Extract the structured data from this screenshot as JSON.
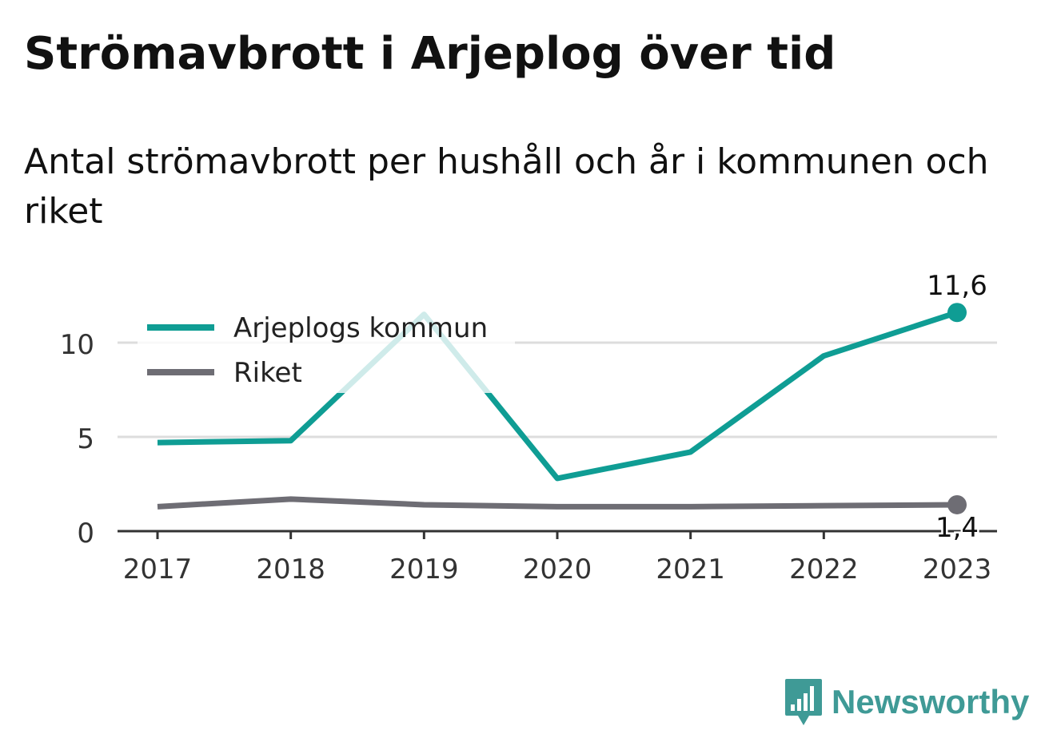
{
  "title": "Strömavbrott i Arjeplog över tid",
  "subtitle": "Antal strömavbrott per hushåll och år i kommunen och riket",
  "brand": {
    "name": "Newsworthy",
    "color": "#3f9a96"
  },
  "chart_data": {
    "type": "line",
    "x": [
      "2017",
      "2018",
      "2019",
      "2020",
      "2021",
      "2022",
      "2023"
    ],
    "series": [
      {
        "name": "Arjeplogs kommun",
        "color": "#0f9d94",
        "values": [
          4.7,
          4.8,
          11.5,
          2.8,
          4.2,
          9.3,
          11.6
        ],
        "end_label": "11,6"
      },
      {
        "name": "Riket",
        "color": "#6e6d74",
        "values": [
          1.3,
          1.7,
          1.4,
          1.3,
          1.3,
          1.35,
          1.4
        ],
        "end_label": "1,4"
      }
    ],
    "yticks": [
      "0",
      "5",
      "10"
    ],
    "ytick_values": [
      0,
      5,
      10
    ],
    "ylim": [
      0,
      12
    ],
    "grid": true,
    "legend_position": "top-left",
    "xlabel": "",
    "ylabel": ""
  }
}
